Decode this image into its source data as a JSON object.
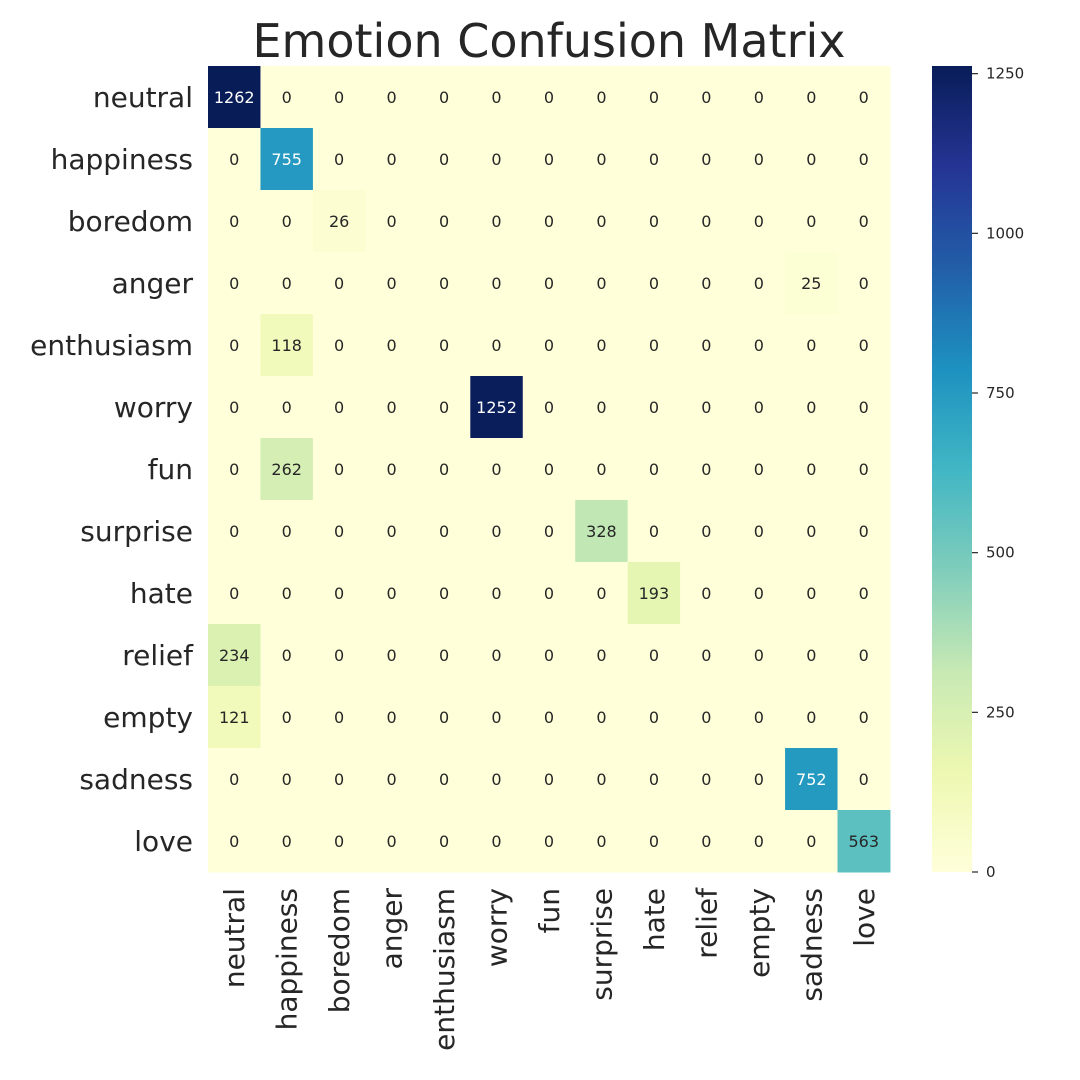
{
  "chart_data": {
    "type": "heatmap",
    "title": "Emotion Confusion Matrix",
    "xlabel": "",
    "ylabel": "",
    "row_labels": [
      "neutral",
      "happiness",
      "boredom",
      "anger",
      "enthusiasm",
      "worry",
      "fun",
      "surprise",
      "hate",
      "relief",
      "empty",
      "sadness",
      "love"
    ],
    "col_labels": [
      "neutral",
      "happiness",
      "boredom",
      "anger",
      "enthusiasm",
      "worry",
      "fun",
      "surprise",
      "hate",
      "relief",
      "empty",
      "sadness",
      "love"
    ],
    "values": [
      [
        1262,
        0,
        0,
        0,
        0,
        0,
        0,
        0,
        0,
        0,
        0,
        0,
        0
      ],
      [
        0,
        755,
        0,
        0,
        0,
        0,
        0,
        0,
        0,
        0,
        0,
        0,
        0
      ],
      [
        0,
        0,
        26,
        0,
        0,
        0,
        0,
        0,
        0,
        0,
        0,
        0,
        0
      ],
      [
        0,
        0,
        0,
        0,
        0,
        0,
        0,
        0,
        0,
        0,
        0,
        25,
        0
      ],
      [
        0,
        118,
        0,
        0,
        0,
        0,
        0,
        0,
        0,
        0,
        0,
        0,
        0
      ],
      [
        0,
        0,
        0,
        0,
        0,
        1252,
        0,
        0,
        0,
        0,
        0,
        0,
        0
      ],
      [
        0,
        262,
        0,
        0,
        0,
        0,
        0,
        0,
        0,
        0,
        0,
        0,
        0
      ],
      [
        0,
        0,
        0,
        0,
        0,
        0,
        0,
        328,
        0,
        0,
        0,
        0,
        0
      ],
      [
        0,
        0,
        0,
        0,
        0,
        0,
        0,
        0,
        193,
        0,
        0,
        0,
        0
      ],
      [
        234,
        0,
        0,
        0,
        0,
        0,
        0,
        0,
        0,
        0,
        0,
        0,
        0
      ],
      [
        121,
        0,
        0,
        0,
        0,
        0,
        0,
        0,
        0,
        0,
        0,
        0,
        0
      ],
      [
        0,
        0,
        0,
        0,
        0,
        0,
        0,
        0,
        0,
        0,
        0,
        752,
        0
      ],
      [
        0,
        0,
        0,
        0,
        0,
        0,
        0,
        0,
        0,
        0,
        0,
        0,
        563
      ]
    ],
    "colormap": "YlGnBu",
    "color_range": [
      0,
      1262
    ],
    "colorbar_ticks": [
      0,
      250,
      500,
      750,
      1000,
      1250
    ],
    "annotations": true,
    "grid": false,
    "legend": "colorbar-right"
  }
}
